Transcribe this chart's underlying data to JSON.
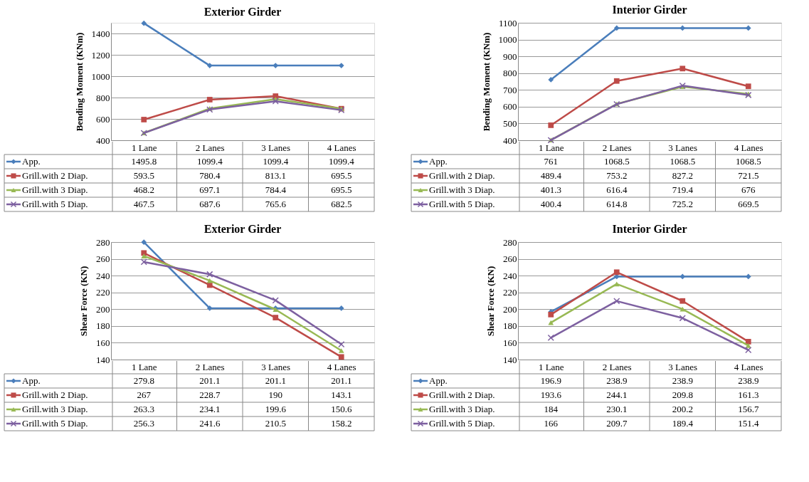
{
  "chart_data": [
    {
      "type": "line",
      "title": "Exterior Girder",
      "ylabel": "Bending Moment (KNm)",
      "categories": [
        "1 Lane",
        "2 Lanes",
        "3 Lanes",
        "4 Lanes"
      ],
      "ylim": [
        400,
        1500
      ],
      "yticks": [
        400,
        600,
        800,
        1000,
        1200,
        1400
      ],
      "grid": "y",
      "data_labels": true,
      "line_style": "solid",
      "legend": "bottom left",
      "series": [
        {
          "name": "App.",
          "color": "#4a7ebb",
          "marker": "diamond",
          "values": [
            1495.8,
            1099.4,
            1099.4,
            1099.4
          ]
        },
        {
          "name": "Grill.with 2 Diap.",
          "color": "#be4b48",
          "marker": "square",
          "values": [
            593.5,
            780.4,
            813.1,
            695.5
          ]
        },
        {
          "name": "Grill.with 3 Diap.",
          "color": "#98b954",
          "marker": "triangle",
          "values": [
            468.2,
            697.1,
            784.4,
            695.5
          ]
        },
        {
          "name": "Grill.with 5 Diap.",
          "color": "#7d60a0",
          "marker": "cross",
          "values": [
            467.5,
            687.6,
            765.6,
            682.5
          ]
        }
      ]
    },
    {
      "type": "line",
      "title": "Interior Girder",
      "ylabel": "Bending Moment (KNm)",
      "categories": [
        "1 Lane",
        "2 Lanes",
        "3 Lanes",
        "4 Lanes"
      ],
      "ylim": [
        400,
        1100
      ],
      "yticks": [
        400,
        500,
        600,
        700,
        800,
        900,
        1000,
        1100
      ],
      "grid": "y",
      "data_labels": true,
      "line_style": "solid",
      "legend": "bottom left",
      "series": [
        {
          "name": "App.",
          "color": "#4a7ebb",
          "marker": "diamond",
          "values": [
            761,
            1068.5,
            1068.5,
            1068.5
          ]
        },
        {
          "name": "Grill.with 2 Diap.",
          "color": "#be4b48",
          "marker": "square",
          "values": [
            489.4,
            753.2,
            827.2,
            721.5
          ]
        },
        {
          "name": "Grill.with 3 Diap.",
          "color": "#98b954",
          "marker": "triangle",
          "values": [
            401.3,
            616.4,
            719.4,
            676
          ]
        },
        {
          "name": "Grill.with 5 Diap.",
          "color": "#7d60a0",
          "marker": "cross",
          "values": [
            400.4,
            614.8,
            725.2,
            669.5
          ]
        }
      ]
    },
    {
      "type": "line",
      "title": "Exterior Girder",
      "ylabel": "Shear Force (KN)",
      "categories": [
        "1 Lane",
        "2 Lanes",
        "3 Lanes",
        "4 Lanes"
      ],
      "ylim": [
        140,
        280
      ],
      "yticks": [
        140,
        160,
        180,
        200,
        220,
        240,
        260,
        280
      ],
      "grid": "y",
      "data_labels": true,
      "line_style": "solid",
      "legend": "bottom left",
      "series": [
        {
          "name": "App.",
          "color": "#4a7ebb",
          "marker": "diamond",
          "values": [
            279.8,
            201.1,
            201.1,
            201.1
          ]
        },
        {
          "name": "Grill.with 2 Diap.",
          "color": "#be4b48",
          "marker": "square",
          "values": [
            267,
            228.7,
            190,
            143.1
          ]
        },
        {
          "name": "Grill.with 3 Diap.",
          "color": "#98b954",
          "marker": "triangle",
          "values": [
            263.3,
            234.1,
            199.6,
            150.6
          ]
        },
        {
          "name": "Grill.with 5 Diap.",
          "color": "#7d60a0",
          "marker": "cross",
          "values": [
            256.3,
            241.6,
            210.5,
            158.2
          ]
        }
      ]
    },
    {
      "type": "line",
      "title": "Interior Girder",
      "ylabel": "Shear Force (KN)",
      "categories": [
        "1 Lane",
        "2 Lanes",
        "3 Lanes",
        "4 Lanes"
      ],
      "ylim": [
        140,
        280
      ],
      "yticks": [
        140,
        160,
        180,
        200,
        220,
        240,
        260,
        280
      ],
      "grid": "y",
      "data_labels": true,
      "line_style": "solid",
      "legend": "bottom left",
      "series": [
        {
          "name": "App.",
          "color": "#4a7ebb",
          "marker": "diamond",
          "values": [
            196.9,
            238.9,
            238.9,
            238.9
          ]
        },
        {
          "name": "Grill.with 2 Diap.",
          "color": "#be4b48",
          "marker": "square",
          "values": [
            193.6,
            244.1,
            209.8,
            161.3
          ]
        },
        {
          "name": "Grill.with 3 Diap.",
          "color": "#98b954",
          "marker": "triangle",
          "values": [
            184,
            230.1,
            200.2,
            156.7
          ]
        },
        {
          "name": "Grill.with 5 Diap.",
          "color": "#7d60a0",
          "marker": "cross",
          "values": [
            166,
            209.7,
            189.4,
            151.4
          ]
        }
      ]
    }
  ]
}
